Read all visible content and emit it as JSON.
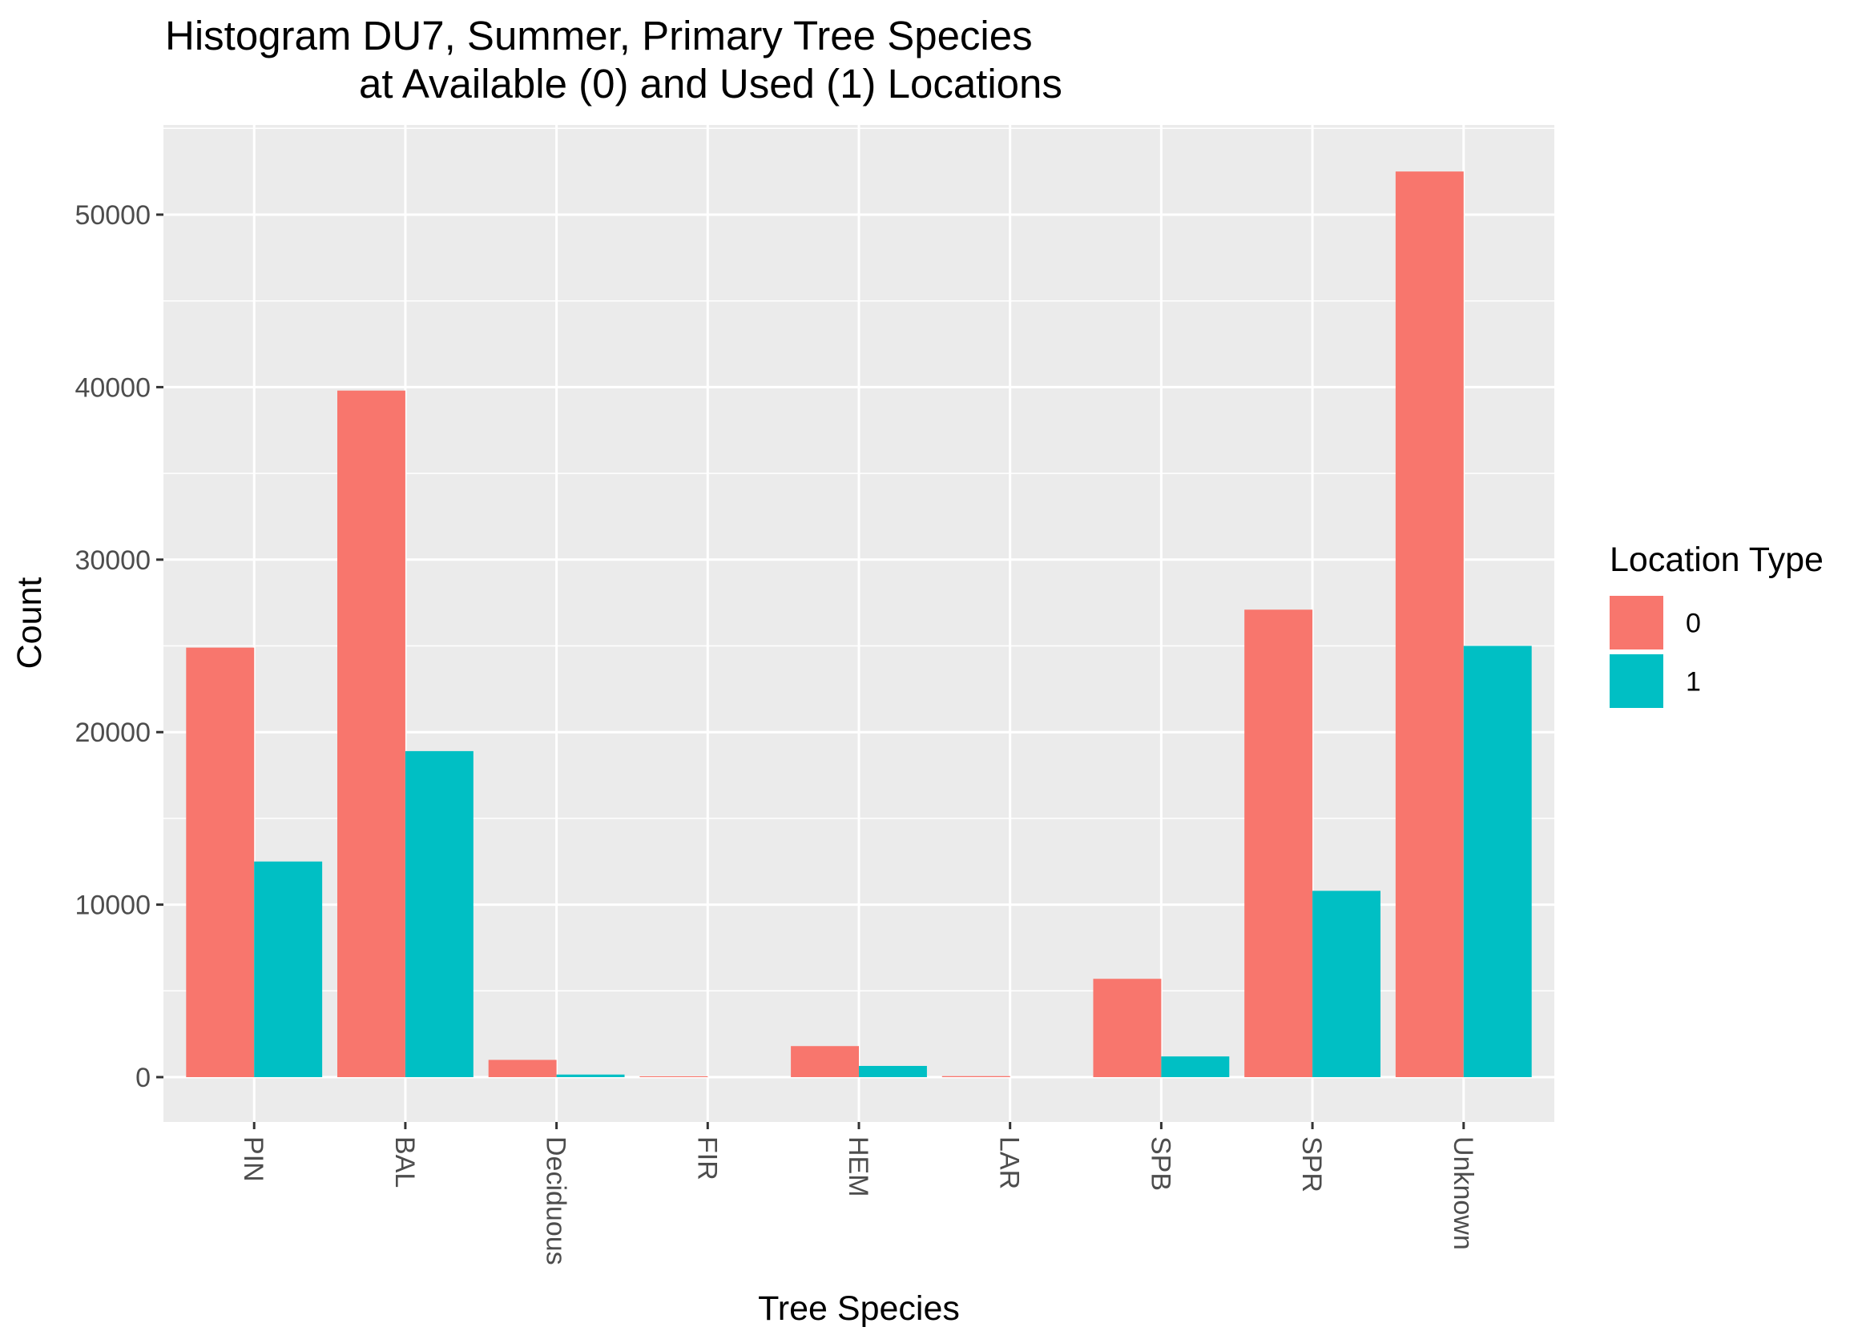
{
  "chart_data": {
    "type": "bar",
    "title_lines": [
      "Histogram DU7, Summer, Primary Tree Species",
      "at Available (0) and Used (1) Locations"
    ],
    "xlabel": "Tree Species",
    "ylabel": "Count",
    "categories": [
      "PIN",
      "BAL",
      "Deciduous",
      "FIR",
      "HEM",
      "LAR",
      "SPB",
      "SPR",
      "Unknown"
    ],
    "series": [
      {
        "name": "0",
        "color": "#F8766D",
        "values": [
          24900,
          39800,
          1000,
          50,
          1800,
          60,
          5700,
          27100,
          52500
        ]
      },
      {
        "name": "1",
        "color": "#00BFC4",
        "values": [
          12500,
          18900,
          150,
          0,
          650,
          0,
          1200,
          10800,
          25000
        ]
      }
    ],
    "ylim": [
      -2600,
      55200
    ],
    "yticks": [
      0,
      10000,
      20000,
      30000,
      40000,
      50000
    ],
    "ytick_labels": [
      "0",
      "10000",
      "20000",
      "30000",
      "40000",
      "50000"
    ],
    "grid": true,
    "panel_background": "#EBEBEB",
    "legend": {
      "title": "Location Type",
      "position": "right"
    }
  }
}
